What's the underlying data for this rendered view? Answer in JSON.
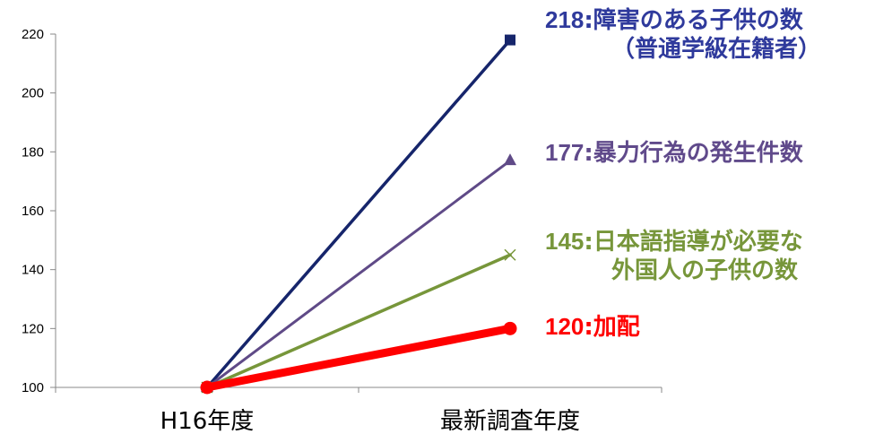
{
  "chart_data": {
    "type": "line",
    "categories": [
      "H16年度",
      "最新調査年度"
    ],
    "ylim": [
      100,
      220
    ],
    "yticks": [
      100,
      120,
      140,
      160,
      180,
      200,
      220
    ],
    "grid": false,
    "series": [
      {
        "values": [
          100,
          218
        ],
        "color": "#16256b",
        "marker": "square"
      },
      {
        "values": [
          100,
          177
        ],
        "color": "#5f4a87",
        "marker": "triangle"
      },
      {
        "values": [
          100,
          145
        ],
        "color": "#77963a",
        "marker": "x"
      },
      {
        "values": [
          100,
          120
        ],
        "color": "#ff0000",
        "marker": "circle"
      }
    ],
    "annotations": [
      {
        "value": "218",
        "sep": ":",
        "line1": "障害のある子供の数",
        "line2": "（普通学級在籍者）",
        "color": "#2f3a9c"
      },
      {
        "value": "177",
        "sep": ":",
        "line1": "暴力行為の発生件数",
        "line2": "",
        "color": "#604a8b"
      },
      {
        "value": "145",
        "sep": ":",
        "line1": "日本語指導が必要な",
        "line2": "外国人の子供の数",
        "color": "#77963a"
      },
      {
        "value": "120",
        "sep": ":",
        "line1": "加配",
        "line2": "",
        "color": "#ff0000"
      }
    ]
  }
}
